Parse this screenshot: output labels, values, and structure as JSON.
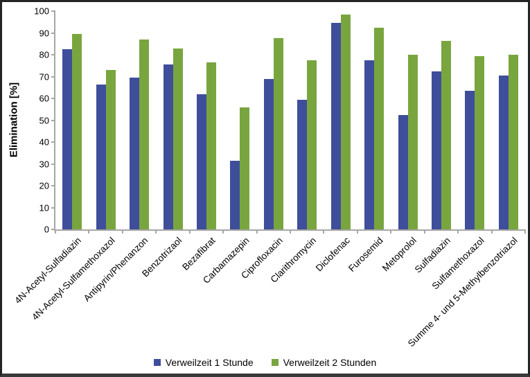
{
  "chart_data": {
    "type": "bar",
    "title": "",
    "xlabel": "",
    "ylabel": "Elimination [%]",
    "ylim": [
      0,
      100
    ],
    "ytick_step": 10,
    "grid": false,
    "legend_position": "bottom",
    "x_label_rotation_deg": 45,
    "categories": [
      "4N-Acetyl-Sulfadiazin",
      "4N-Acetyl-Sulfamethoxazol",
      "Antipyrin/Phenanzon",
      "Benzotrizaol",
      "Bezafibrat",
      "Carbamazepin",
      "Ciprofloxacin",
      "Clarithromycin",
      "Diclofenac",
      "Furosemid",
      "Metoprolol",
      "Sulfadiazin",
      "Sulfamethoxazol",
      "Summe 4- und 5-Methylbenzotriazol"
    ],
    "series": [
      {
        "name": "Verweilzeit 1 Stunde",
        "color": "#3F4E9B",
        "values": [
          82.5,
          66.5,
          69.5,
          75.5,
          62,
          31.5,
          69,
          59.5,
          94.5,
          77.5,
          52.5,
          72.5,
          63.5,
          70.5
        ]
      },
      {
        "name": "Verweilzeit 2 Stunden",
        "color": "#79A53F",
        "values": [
          89.5,
          73,
          87,
          83,
          76.5,
          56,
          87.5,
          77.5,
          98.5,
          92.5,
          80,
          86.5,
          79.5,
          80
        ]
      }
    ],
    "axis_color": "#a6a6a6"
  }
}
